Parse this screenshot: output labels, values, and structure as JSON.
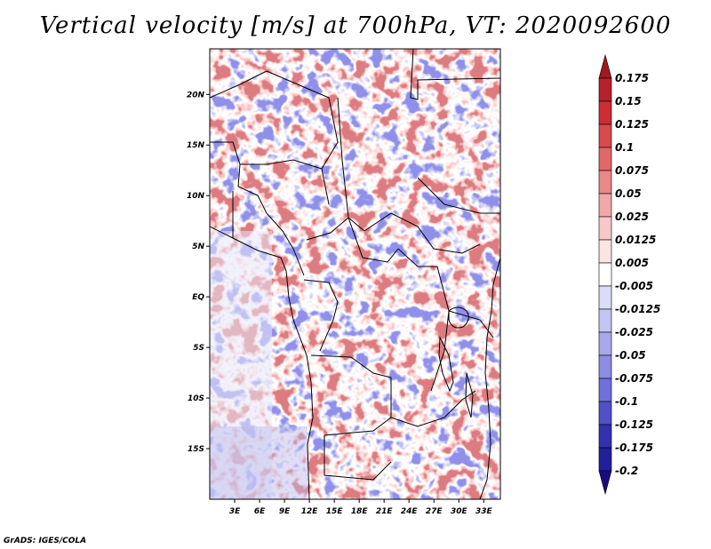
{
  "title": "Vertical velocity [m/s] at 700hPa, VT: 2020092600",
  "credit": "GrADS: IGES/COLA",
  "map": {
    "lat_labels": [
      "20N",
      "15N",
      "10N",
      "5N",
      "EQ",
      "5S",
      "10S",
      "15S"
    ],
    "lat_values": [
      20,
      15,
      10,
      5,
      0,
      -5,
      -10,
      -15
    ],
    "lon_labels": [
      "3E",
      "6E",
      "9E",
      "12E",
      "15E",
      "18E",
      "21E",
      "24E",
      "27E",
      "30E",
      "33E"
    ],
    "lon_values": [
      3,
      6,
      9,
      12,
      15,
      18,
      21,
      24,
      27,
      30,
      33
    ],
    "lon_range": [
      0,
      35
    ],
    "lat_range": [
      -20,
      24.5
    ]
  },
  "colorbar": {
    "labels": [
      "0.175",
      "0.15",
      "0.125",
      "0.1",
      "0.075",
      "0.05",
      "0.025",
      "0.0125",
      "0.005",
      "-0.005",
      "-0.0125",
      "-0.025",
      "-0.05",
      "-0.075",
      "-0.1",
      "-0.125",
      "-0.175",
      "-0.2"
    ],
    "colors": [
      "#a01820",
      "#b8202a",
      "#cc2e34",
      "#d84a4c",
      "#e06868",
      "#e88888",
      "#f0a8a8",
      "#f6c8c8",
      "#fbe4e4",
      "#ffffff",
      "#dcdcf8",
      "#c4c4f2",
      "#a8a8ec",
      "#8c8ce4",
      "#7070dc",
      "#5050c8",
      "#3232b0",
      "#20209a",
      "#180c80"
    ]
  }
}
